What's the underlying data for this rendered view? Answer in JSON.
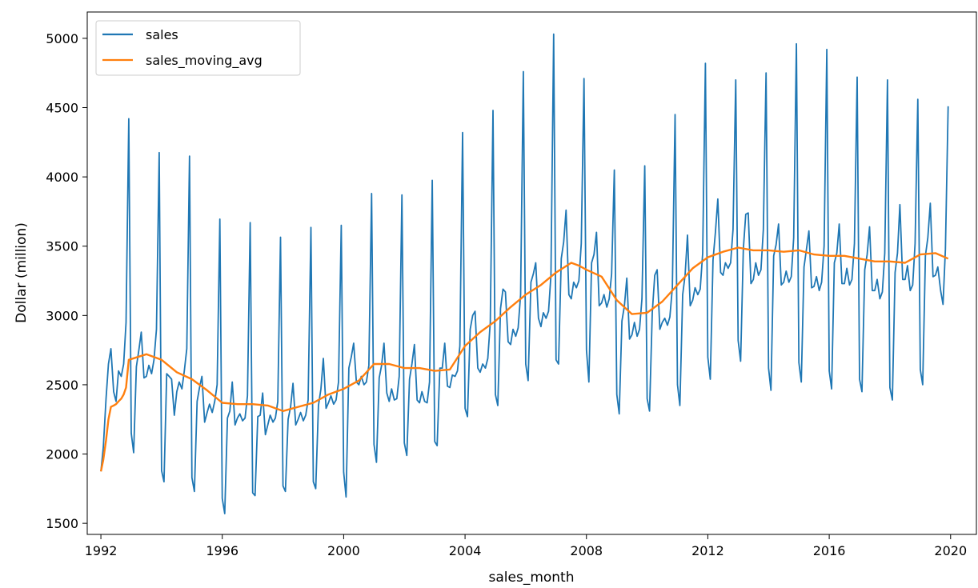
{
  "chart_data": {
    "type": "line",
    "xlabel": "sales_month",
    "ylabel": "Dollar (million)",
    "xlim": [
      1991.55,
      2020.85
    ],
    "ylim": [
      1420,
      5190
    ],
    "xticks": [
      1992,
      1996,
      2000,
      2004,
      2008,
      2012,
      2016,
      2020
    ],
    "yticks": [
      1500,
      2000,
      2500,
      3000,
      3500,
      4000,
      4500,
      5000
    ],
    "legend_position": "top-left",
    "grid": false,
    "series": [
      {
        "name": "sales",
        "color": "#1f77b4",
        "x": [
          1992.0,
          1992.08,
          1992.17,
          1992.25,
          1992.33,
          1992.42,
          1992.5,
          1992.58,
          1992.67,
          1992.75,
          1992.83,
          1992.92,
          1993.0,
          1993.08,
          1993.17,
          1993.25,
          1993.33,
          1993.42,
          1993.5,
          1993.58,
          1993.67,
          1993.75,
          1993.83,
          1993.92,
          1994.0,
          1994.08,
          1994.17,
          1994.25,
          1994.33,
          1994.42,
          1994.5,
          1994.58,
          1994.67,
          1994.75,
          1994.83,
          1994.92,
          1995.0,
          1995.08,
          1995.17,
          1995.25,
          1995.33,
          1995.42,
          1995.5,
          1995.58,
          1995.67,
          1995.75,
          1995.83,
          1995.92,
          1996.0,
          1996.08,
          1996.17,
          1996.25,
          1996.33,
          1996.42,
          1996.5,
          1996.58,
          1996.67,
          1996.75,
          1996.83,
          1996.92,
          1997.0,
          1997.08,
          1997.17,
          1997.25,
          1997.33,
          1997.42,
          1997.5,
          1997.58,
          1997.67,
          1997.75,
          1997.83,
          1997.92,
          1998.0,
          1998.08,
          1998.17,
          1998.25,
          1998.33,
          1998.42,
          1998.5,
          1998.58,
          1998.67,
          1998.75,
          1998.83,
          1998.92,
          1999.0,
          1999.08,
          1999.17,
          1999.25,
          1999.33,
          1999.42,
          1999.5,
          1999.58,
          1999.67,
          1999.75,
          1999.83,
          1999.92,
          2000.0,
          2000.08,
          2000.17,
          2000.25,
          2000.33,
          2000.42,
          2000.5,
          2000.58,
          2000.67,
          2000.75,
          2000.83,
          2000.92,
          2001.0,
          2001.08,
          2001.17,
          2001.25,
          2001.33,
          2001.42,
          2001.5,
          2001.58,
          2001.67,
          2001.75,
          2001.83,
          2001.92,
          2002.0,
          2002.08,
          2002.17,
          2002.25,
          2002.33,
          2002.42,
          2002.5,
          2002.58,
          2002.67,
          2002.75,
          2002.83,
          2002.92,
          2003.0,
          2003.08,
          2003.17,
          2003.25,
          2003.33,
          2003.42,
          2003.5,
          2003.58,
          2003.67,
          2003.75,
          2003.83,
          2003.92,
          2004.0,
          2004.08,
          2004.17,
          2004.25,
          2004.33,
          2004.42,
          2004.5,
          2004.58,
          2004.67,
          2004.75,
          2004.83,
          2004.92,
          2005.0,
          2005.08,
          2005.17,
          2005.25,
          2005.33,
          2005.42,
          2005.5,
          2005.58,
          2005.67,
          2005.75,
          2005.83,
          2005.92,
          2006.0,
          2006.08,
          2006.17,
          2006.25,
          2006.33,
          2006.42,
          2006.5,
          2006.58,
          2006.67,
          2006.75,
          2006.83,
          2006.92,
          2007.0,
          2007.08,
          2007.17,
          2007.25,
          2007.33,
          2007.42,
          2007.5,
          2007.58,
          2007.67,
          2007.75,
          2007.83,
          2007.92,
          2008.0,
          2008.08,
          2008.17,
          2008.25,
          2008.33,
          2008.42,
          2008.5,
          2008.58,
          2008.67,
          2008.75,
          2008.83,
          2008.92,
          2009.0,
          2009.08,
          2009.17,
          2009.25,
          2009.33,
          2009.42,
          2009.5,
          2009.58,
          2009.67,
          2009.75,
          2009.83,
          2009.92,
          2010.0,
          2010.08,
          2010.17,
          2010.25,
          2010.33,
          2010.42,
          2010.5,
          2010.58,
          2010.67,
          2010.75,
          2010.83,
          2010.92,
          2011.0,
          2011.08,
          2011.17,
          2011.25,
          2011.33,
          2011.42,
          2011.5,
          2011.58,
          2011.67,
          2011.75,
          2011.83,
          2011.92,
          2012.0,
          2012.08,
          2012.17,
          2012.25,
          2012.33,
          2012.42,
          2012.5,
          2012.58,
          2012.67,
          2012.75,
          2012.83,
          2012.92,
          2013.0,
          2013.08,
          2013.17,
          2013.25,
          2013.33,
          2013.42,
          2013.5,
          2013.58,
          2013.67,
          2013.75,
          2013.83,
          2013.92,
          2014.0,
          2014.08,
          2014.17,
          2014.25,
          2014.33,
          2014.42,
          2014.5,
          2014.58,
          2014.67,
          2014.75,
          2014.83,
          2014.92,
          2015.0,
          2015.08,
          2015.17,
          2015.25,
          2015.33,
          2015.42,
          2015.5,
          2015.58,
          2015.67,
          2015.75,
          2015.83,
          2015.92,
          2016.0,
          2016.08,
          2016.17,
          2016.25,
          2016.33,
          2016.42,
          2016.5,
          2016.58,
          2016.67,
          2016.75,
          2016.83,
          2016.92,
          2017.0,
          2017.08,
          2017.17,
          2017.25,
          2017.33,
          2017.42,
          2017.5,
          2017.58,
          2017.67,
          2017.75,
          2017.83,
          2017.92,
          2018.0,
          2018.08,
          2018.17,
          2018.25,
          2018.33,
          2018.42,
          2018.5,
          2018.58,
          2018.67,
          2018.75,
          2018.83,
          2018.92,
          2019.0,
          2019.08,
          2019.17,
          2019.25,
          2019.33,
          2019.42,
          2019.5,
          2019.58,
          2019.67,
          2019.75,
          2019.83,
          2019.92
        ],
        "y": [
          1875,
          2050,
          2400,
          2650,
          2760,
          2450,
          2380,
          2600,
          2560,
          2650,
          2950,
          4420,
          2150,
          2010,
          2630,
          2750,
          2880,
          2550,
          2560,
          2640,
          2580,
          2680,
          2900,
          4175,
          1880,
          1800,
          2580,
          2560,
          2540,
          2280,
          2450,
          2520,
          2470,
          2600,
          2760,
          4150,
          1830,
          1730,
          2380,
          2480,
          2560,
          2230,
          2300,
          2360,
          2300,
          2380,
          2500,
          3695,
          1680,
          1570,
          2260,
          2310,
          2520,
          2210,
          2260,
          2290,
          2240,
          2260,
          2420,
          3670,
          1720,
          1700,
          2270,
          2280,
          2440,
          2140,
          2210,
          2280,
          2230,
          2260,
          2380,
          3565,
          1770,
          1730,
          2250,
          2340,
          2510,
          2210,
          2250,
          2300,
          2240,
          2280,
          2390,
          3635,
          1800,
          1750,
          2350,
          2470,
          2690,
          2330,
          2370,
          2420,
          2360,
          2390,
          2520,
          3650,
          1870,
          1690,
          2620,
          2700,
          2800,
          2520,
          2500,
          2560,
          2500,
          2520,
          2640,
          3880,
          2070,
          1940,
          2550,
          2640,
          2800,
          2440,
          2380,
          2470,
          2390,
          2400,
          2560,
          3870,
          2080,
          1990,
          2540,
          2650,
          2790,
          2390,
          2370,
          2450,
          2380,
          2370,
          2520,
          3975,
          2090,
          2060,
          2620,
          2620,
          2800,
          2490,
          2480,
          2570,
          2560,
          2600,
          2780,
          4320,
          2330,
          2270,
          2900,
          3000,
          3030,
          2620,
          2590,
          2650,
          2620,
          2690,
          2950,
          4480,
          2430,
          2350,
          3050,
          3190,
          3170,
          2810,
          2790,
          2900,
          2850,
          2910,
          3150,
          4760,
          2650,
          2530,
          3240,
          3300,
          3380,
          2980,
          2920,
          3020,
          2980,
          3030,
          3290,
          5030,
          2680,
          2650,
          3410,
          3530,
          3760,
          3150,
          3120,
          3240,
          3200,
          3250,
          3520,
          4710,
          2750,
          2520,
          3380,
          3440,
          3600,
          3070,
          3090,
          3150,
          3060,
          3120,
          3300,
          4050,
          2430,
          2290,
          2960,
          3070,
          3270,
          2830,
          2860,
          2950,
          2850,
          2900,
          3120,
          4080,
          2400,
          2310,
          3020,
          3290,
          3330,
          2900,
          2950,
          2980,
          2930,
          2990,
          3200,
          4450,
          2500,
          2350,
          3150,
          3290,
          3580,
          3070,
          3110,
          3200,
          3150,
          3190,
          3450,
          4820,
          2700,
          2540,
          3400,
          3600,
          3840,
          3310,
          3290,
          3380,
          3340,
          3380,
          3620,
          4700,
          2820,
          2670,
          3480,
          3730,
          3740,
          3230,
          3260,
          3380,
          3290,
          3330,
          3620,
          4750,
          2620,
          2460,
          3430,
          3510,
          3660,
          3220,
          3240,
          3320,
          3240,
          3280,
          3560,
          4960,
          2660,
          2520,
          3350,
          3480,
          3610,
          3200,
          3210,
          3280,
          3180,
          3240,
          3500,
          4920,
          2600,
          2470,
          3380,
          3450,
          3660,
          3230,
          3230,
          3340,
          3220,
          3260,
          3520,
          4720,
          2540,
          2450,
          3330,
          3440,
          3640,
          3180,
          3180,
          3260,
          3120,
          3170,
          3450,
          4700,
          2480,
          2390,
          3310,
          3450,
          3800,
          3260,
          3260,
          3360,
          3180,
          3220,
          3520,
          4560,
          2610,
          2500,
          3430,
          3560,
          3810,
          3280,
          3290,
          3350,
          3180,
          3080,
          3480,
          4510
        ]
      },
      {
        "name": "sales_moving_avg",
        "color": "#ff7f0e",
        "x": [
          1992.0,
          1992.08,
          1992.17,
          1992.25,
          1992.33,
          1992.42,
          1992.5,
          1992.58,
          1992.67,
          1992.75,
          1992.83,
          1992.92,
          1993.5,
          1994.0,
          1994.5,
          1995.0,
          1995.5,
          1996.0,
          1996.5,
          1997.0,
          1997.5,
          1998.0,
          1998.5,
          1999.0,
          1999.5,
          2000.0,
          2000.5,
          2001.0,
          2001.5,
          2002.0,
          2002.5,
          2003.0,
          2003.5,
          2004.0,
          2004.5,
          2005.0,
          2005.5,
          2006.0,
          2006.5,
          2007.0,
          2007.5,
          2007.75,
          2008.0,
          2008.5,
          2009.0,
          2009.5,
          2010.0,
          2010.5,
          2011.0,
          2011.5,
          2012.0,
          2012.5,
          2013.0,
          2013.5,
          2014.0,
          2014.5,
          2015.0,
          2015.5,
          2016.0,
          2016.5,
          2017.0,
          2017.5,
          2018.0,
          2018.5,
          2019.0,
          2019.5,
          2019.92
        ],
        "y": [
          1875,
          1960,
          2100,
          2250,
          2340,
          2350,
          2360,
          2380,
          2400,
          2430,
          2480,
          2680,
          2720,
          2680,
          2590,
          2540,
          2460,
          2370,
          2360,
          2360,
          2350,
          2310,
          2340,
          2370,
          2430,
          2470,
          2530,
          2650,
          2650,
          2620,
          2620,
          2600,
          2610,
          2780,
          2880,
          2960,
          3060,
          3150,
          3220,
          3310,
          3380,
          3360,
          3330,
          3280,
          3110,
          3010,
          3020,
          3100,
          3220,
          3340,
          3420,
          3460,
          3490,
          3470,
          3470,
          3460,
          3470,
          3440,
          3430,
          3430,
          3410,
          3390,
          3390,
          3380,
          3440,
          3450,
          3410
        ]
      }
    ]
  }
}
